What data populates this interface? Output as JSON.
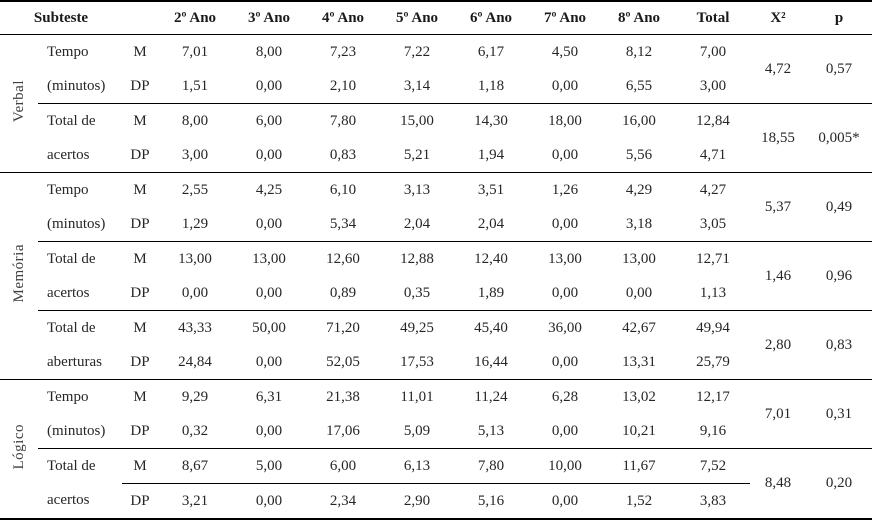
{
  "colors": {
    "background": "#ffffff",
    "text": "#262626",
    "header_text": "#1a1a1a",
    "rule_lines": "#000000"
  },
  "table": {
    "header": {
      "subteste_label": "Subteste",
      "year_cols": [
        "2º Ano",
        "3º Ano",
        "4º Ano",
        "5º Ano",
        "6º Ano",
        "7º Ano",
        "8º Ano",
        "Total"
      ],
      "x2_label": "X²",
      "p_label": "p"
    },
    "stat_labels": {
      "m": "M",
      "dp": "DP"
    },
    "sections": [
      {
        "label": "Verbal",
        "groups": [
          {
            "label1": "Tempo",
            "label2": "(minutos)",
            "m": [
              "7,01",
              "8,00",
              "7,23",
              "7,22",
              "6,17",
              "4,50",
              "8,12",
              "7,00"
            ],
            "dp": [
              "1,51",
              "0,00",
              "2,10",
              "3,14",
              "1,18",
              "0,00",
              "6,55",
              "3,00"
            ],
            "x2": "4,72",
            "p": "0,57"
          },
          {
            "label1": "Total de",
            "label2": "acertos",
            "m": [
              "8,00",
              "6,00",
              "7,80",
              "15,00",
              "14,30",
              "18,00",
              "16,00",
              "12,84"
            ],
            "dp": [
              "3,00",
              "0,00",
              "0,83",
              "5,21",
              "1,94",
              "0,00",
              "5,56",
              "4,71"
            ],
            "x2": "18,55",
            "p": "0,005*"
          }
        ]
      },
      {
        "label": "Memória",
        "groups": [
          {
            "label1": "Tempo",
            "label2": "(minutos)",
            "m": [
              "2,55",
              "4,25",
              "6,10",
              "3,13",
              "3,51",
              "1,26",
              "4,29",
              "4,27"
            ],
            "dp": [
              "1,29",
              "0,00",
              "5,34",
              "2,04",
              "2,04",
              "0,00",
              "3,18",
              "3,05"
            ],
            "x2": "5,37",
            "p": "0,49"
          },
          {
            "label1": "Total de",
            "label2": "acertos",
            "m": [
              "13,00",
              "13,00",
              "12,60",
              "12,88",
              "12,40",
              "13,00",
              "13,00",
              "12,71"
            ],
            "dp": [
              "0,00",
              "0,00",
              "0,89",
              "0,35",
              "1,89",
              "0,00",
              "0,00",
              "1,13"
            ],
            "x2": "1,46",
            "p": "0,96"
          },
          {
            "label1": "Total de",
            "label2": "aberturas",
            "m": [
              "43,33",
              "50,00",
              "71,20",
              "49,25",
              "45,40",
              "36,00",
              "42,67",
              "49,94"
            ],
            "dp": [
              "24,84",
              "0,00",
              "52,05",
              "17,53",
              "16,44",
              "0,00",
              "13,31",
              "25,79"
            ],
            "x2": "2,80",
            "p": "0,83"
          }
        ]
      },
      {
        "label": "Lógico",
        "groups": [
          {
            "label1": "Tempo",
            "label2": "(minutos)",
            "m": [
              "9,29",
              "6,31",
              "21,38",
              "11,01",
              "11,24",
              "6,28",
              "13,02",
              "12,17"
            ],
            "dp": [
              "0,32",
              "0,00",
              "17,06",
              "5,09",
              "5,13",
              "0,00",
              "10,21",
              "9,16"
            ],
            "x2": "7,01",
            "p": "0,31"
          },
          {
            "label1": "Total de",
            "label2": "acertos",
            "m": [
              "8,67",
              "5,00",
              "6,00",
              "6,13",
              "7,80",
              "10,00",
              "11,67",
              "7,52"
            ],
            "dp": [
              "3,21",
              "0,00",
              "2,34",
              "2,90",
              "5,16",
              "0,00",
              "1,52",
              "3,83"
            ],
            "x2": "8,48",
            "p": "0,20"
          }
        ]
      }
    ]
  }
}
